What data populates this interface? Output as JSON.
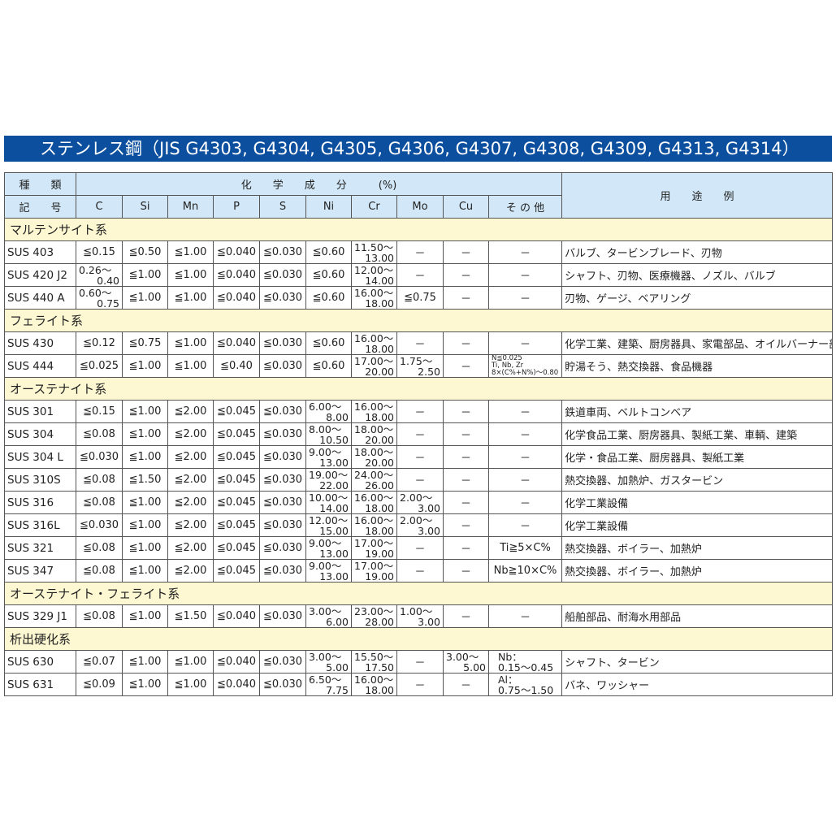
{
  "title": "ステンレス鋼（JIS G4303, G4304, G4305, G4306, G4307, G4308, G4309, G4313, G4314）",
  "header": {
    "kind_top": "種　　類",
    "kind_bottom": "記　　号",
    "chem": "化　　学　　成　　分　　　(%)",
    "usage": "用　　途　　例",
    "columns": [
      "C",
      "Si",
      "Mn",
      "P",
      "S",
      "Ni",
      "Cr",
      "Mo",
      "Cu",
      "そ の 他"
    ]
  },
  "colors": {
    "title_bg": "#0b4f9e",
    "header_bg": "#d2e8f8",
    "category_bg": "#fdf7d2"
  },
  "groups": [
    {
      "name": "マルテンサイト系",
      "rows": [
        {
          "code": "SUS 403",
          "vals": [
            "≦0.15",
            "≦0.50",
            "≦1.00",
            "≦0.040",
            "≦0.030",
            "≦0.60",
            [
              "11.50～",
              "13.00"
            ],
            "－",
            "－",
            "－"
          ],
          "use": "バルブ、タービンブレード、刃物"
        },
        {
          "code": "SUS 420 J2",
          "vals": [
            [
              "0.26～",
              "0.40"
            ],
            "≦1.00",
            "≦1.00",
            "≦0.040",
            "≦0.030",
            "≦0.60",
            [
              "12.00～",
              "14.00"
            ],
            "－",
            "－",
            "－"
          ],
          "use": "シャフト、刃物、医療機器、ノズル、バルブ"
        },
        {
          "code": "SUS 440 A",
          "vals": [
            [
              "0.60～",
              "0.75"
            ],
            "≦1.00",
            "≦1.00",
            "≦0.040",
            "≦0.030",
            "≦0.60",
            [
              "16.00～",
              "18.00"
            ],
            "≦0.75",
            "－",
            "－"
          ],
          "use": "刃物、ゲージ、ベアリング"
        }
      ]
    },
    {
      "name": "フェライト系",
      "rows": [
        {
          "code": "SUS 430",
          "vals": [
            "≦0.12",
            "≦0.75",
            "≦1.00",
            "≦0.040",
            "≦0.030",
            "≦0.60",
            [
              "16.00～",
              "18.00"
            ],
            "－",
            "－",
            "－"
          ],
          "use": "化学工業、建築、厨房器具、家電部品、オイルバーナー部品"
        },
        {
          "code": "SUS 444",
          "vals": [
            "≦0.025",
            "≦1.00",
            "≦1.00",
            "≦0.40",
            "≦0.030",
            "≦0.60",
            [
              "17.00～",
              "20.00"
            ],
            [
              "1.75～",
              "2.50"
            ],
            "－",
            [
              "N≦0.025",
              "Ti, Nb, Zr",
              "8×(C%+N%)～0.80"
            ]
          ],
          "use": "貯湯そう、熱交換器、食品機器"
        }
      ]
    },
    {
      "name": "オーステナイト系",
      "rows": [
        {
          "code": "SUS 301",
          "vals": [
            "≦0.15",
            "≦1.00",
            "≦2.00",
            "≦0.045",
            "≦0.030",
            [
              "6.00～",
              "8.00"
            ],
            [
              "16.00～",
              "18.00"
            ],
            "－",
            "－",
            "－"
          ],
          "use": "鉄道車両、ベルトコンベア"
        },
        {
          "code": "SUS 304",
          "vals": [
            "≦0.08",
            "≦1.00",
            "≦2.00",
            "≦0.045",
            "≦0.030",
            [
              "8.00～",
              "10.50"
            ],
            [
              "18.00～",
              "20.00"
            ],
            "－",
            "－",
            "－"
          ],
          "use": "化学食品工業、厨房器具、製紙工業、車輌、建築"
        },
        {
          "code": "SUS 304 L",
          "vals": [
            "≦0.030",
            "≦1.00",
            "≦2.00",
            "≦0.045",
            "≦0.030",
            [
              "9.00～",
              "13.00"
            ],
            [
              "18.00～",
              "20.00"
            ],
            "－",
            "－",
            "－"
          ],
          "use": "化学・食品工業、厨房器具、製紙工業"
        },
        {
          "code": "SUS 310S",
          "vals": [
            "≦0.08",
            "≦1.50",
            "≦2.00",
            "≦0.045",
            "≦0.030",
            [
              "19.00～",
              "22.00"
            ],
            [
              "24.00～",
              "26.00"
            ],
            "－",
            "－",
            "－"
          ],
          "use": "熱交換器、加熱炉、ガスタービン"
        },
        {
          "code": "SUS 316",
          "vals": [
            "≦0.08",
            "≦1.00",
            "≦2.00",
            "≦0.045",
            "≦0.030",
            [
              "10.00～",
              "14.00"
            ],
            [
              "16.00～",
              "18.00"
            ],
            [
              "2.00～",
              "3.00"
            ],
            "－",
            "－"
          ],
          "use": "化学工業設備"
        },
        {
          "code": "SUS 316L",
          "vals": [
            "≦0.030",
            "≦1.00",
            "≦2.00",
            "≦0.045",
            "≦0.030",
            [
              "12.00～",
              "15.00"
            ],
            [
              "16.00～",
              "18.00"
            ],
            [
              "2.00～",
              "3.00"
            ],
            "－",
            "－"
          ],
          "use": "化学工業設備"
        },
        {
          "code": "SUS 321",
          "vals": [
            "≦0.08",
            "≦1.00",
            "≦2.00",
            "≦0.045",
            "≦0.030",
            [
              "9.00～",
              "13.00"
            ],
            [
              "17.00～",
              "19.00"
            ],
            "－",
            "－",
            "Ti≧5×C%"
          ],
          "use": "熱交換器、ボイラー、加熱炉"
        },
        {
          "code": "SUS 347",
          "vals": [
            "≦0.08",
            "≦1.00",
            "≦2.00",
            "≦0.045",
            "≦0.030",
            [
              "9.00～",
              "13.00"
            ],
            [
              "17.00～",
              "19.00"
            ],
            "－",
            "－",
            "Nb≧10×C%"
          ],
          "use": "熱交換器、ボイラー、加熱炉"
        }
      ]
    },
    {
      "name": "オーステナイト・フェライト系",
      "rows": [
        {
          "code": "SUS 329 J1",
          "vals": [
            "≦0.08",
            "≦1.00",
            "≦1.50",
            "≦0.040",
            "≦0.030",
            [
              "3.00～",
              "6.00"
            ],
            [
              "23.00～",
              "28.00"
            ],
            [
              "1.00～",
              "3.00"
            ],
            "－",
            "－"
          ],
          "use": "船舶部品、耐海水用部品"
        }
      ]
    },
    {
      "name": "析出硬化系",
      "rows": [
        {
          "code": "SUS 630",
          "vals": [
            "≦0.07",
            "≦1.00",
            "≦1.00",
            "≦0.040",
            "≦0.030",
            [
              "3.00～",
              "5.00"
            ],
            [
              "15.50～",
              "17.50"
            ],
            "－",
            [
              "3.00～",
              "5.00"
            ],
            [
              "Nb：",
              "0.15～0.45"
            ]
          ],
          "use": "シャフト、タービン"
        },
        {
          "code": "SUS 631",
          "vals": [
            "≦0.09",
            "≦1.00",
            "≦1.00",
            "≦0.040",
            "≦0.030",
            [
              "6.50～",
              "7.75"
            ],
            [
              "16.00～",
              "18.00"
            ],
            "－",
            "－",
            [
              "Al：",
              "0.75～1.50"
            ]
          ],
          "use": "バネ、ワッシャー"
        }
      ]
    }
  ]
}
